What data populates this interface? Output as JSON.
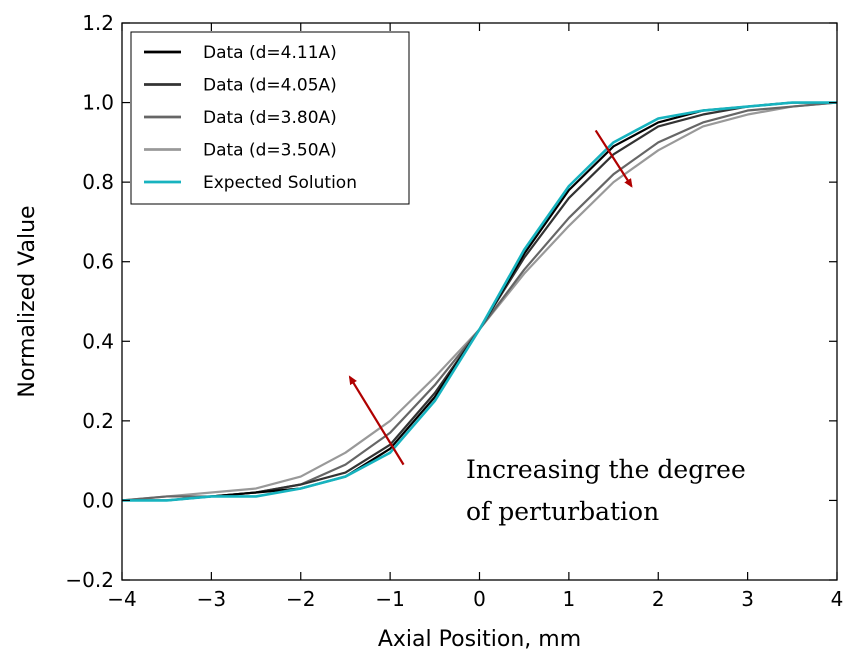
{
  "chart_data": {
    "type": "line",
    "xlabel": "Axial Position, mm",
    "ylabel": "Normalized Value",
    "xlim": [
      -4,
      4
    ],
    "ylim": [
      -0.2,
      1.2
    ],
    "x_ticks": [
      -4,
      -3,
      -2,
      -1,
      0,
      1,
      2,
      3,
      4
    ],
    "x_tick_labels": [
      "−4",
      "−3",
      "−2",
      "−1",
      "0",
      "1",
      "2",
      "3",
      "4"
    ],
    "y_ticks": [
      -0.2,
      0.0,
      0.2,
      0.4,
      0.6,
      0.8,
      1.0,
      1.2
    ],
    "y_tick_labels": [
      "−0.2",
      "0.0",
      "0.2",
      "0.4",
      "0.6",
      "0.8",
      "1.0",
      "1.2"
    ],
    "legend_position": "top-left",
    "grid": false,
    "x": [
      -4,
      -3.5,
      -3,
      -2.5,
      -2,
      -1.5,
      -1,
      -0.5,
      0,
      0.5,
      1,
      1.5,
      2,
      2.5,
      3,
      3.5,
      4
    ],
    "series": [
      {
        "name": "Data (d=4.11A)",
        "color": "#000000",
        "values": [
          0.0,
          0.0,
          0.01,
          0.02,
          0.03,
          0.06,
          0.13,
          0.26,
          0.43,
          0.62,
          0.78,
          0.89,
          0.95,
          0.98,
          0.99,
          1.0,
          1.0
        ]
      },
      {
        "name": "Data (d=4.05A)",
        "color": "#333333",
        "values": [
          0.0,
          0.0,
          0.01,
          0.02,
          0.04,
          0.07,
          0.14,
          0.27,
          0.43,
          0.61,
          0.76,
          0.87,
          0.94,
          0.97,
          0.99,
          1.0,
          1.0
        ]
      },
      {
        "name": "Data (d=3.80A)",
        "color": "#666666",
        "values": [
          0.0,
          0.01,
          0.01,
          0.02,
          0.04,
          0.09,
          0.17,
          0.29,
          0.43,
          0.58,
          0.71,
          0.82,
          0.9,
          0.95,
          0.98,
          0.99,
          1.0
        ]
      },
      {
        "name": "Data (d=3.50A)",
        "color": "#999999",
        "values": [
          0.0,
          0.01,
          0.02,
          0.03,
          0.06,
          0.12,
          0.2,
          0.31,
          0.43,
          0.57,
          0.69,
          0.8,
          0.88,
          0.94,
          0.97,
          0.99,
          1.0
        ]
      },
      {
        "name": "Expected Solution",
        "color": "#17b3bf",
        "values": [
          0.0,
          0.0,
          0.01,
          0.01,
          0.03,
          0.06,
          0.12,
          0.25,
          0.43,
          0.63,
          0.79,
          0.9,
          0.96,
          0.98,
          0.99,
          1.0,
          1.0
        ]
      }
    ],
    "annotations": {
      "text_line_1": "Increasing the degree",
      "text_line_2": "of perturbation",
      "arrow_color": "#b00000",
      "arrows": [
        {
          "from": [
            -0.85,
            0.09
          ],
          "to": [
            -1.45,
            0.31
          ]
        },
        {
          "from": [
            1.3,
            0.93
          ],
          "to": [
            1.7,
            0.79
          ]
        }
      ]
    }
  }
}
